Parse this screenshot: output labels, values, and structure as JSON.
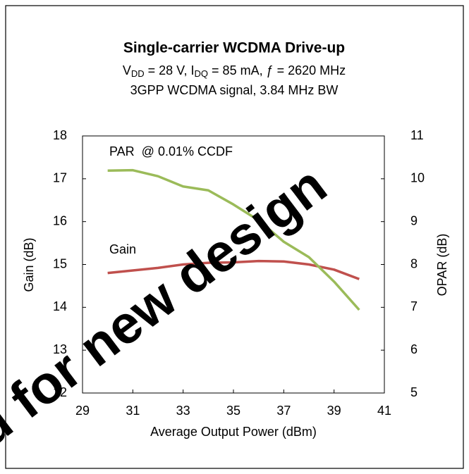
{
  "chart_data": {
    "type": "line",
    "title": "Single-carrier WCDMA Drive-up",
    "subtitle_parts": [
      "V",
      "DD",
      " = 28 V, I",
      "DQ",
      " = 85 mA, ƒ = 2620 MHz"
    ],
    "subtitle2": "3GPP WCDMA signal, 3.84 MHz BW",
    "watermark": "d for new design",
    "x_label": "Average Output Power (dBm)",
    "y_label": "Gain (dB)",
    "y2_label": "OPAR (dB)",
    "x": [
      30,
      31,
      32,
      33,
      34,
      35,
      36,
      37,
      38,
      39,
      40
    ],
    "xlim": [
      29,
      41
    ],
    "xticks": [
      29,
      31,
      33,
      35,
      37,
      39,
      41
    ],
    "ylim": [
      12,
      18
    ],
    "yticks": [
      12,
      13,
      14,
      15,
      16,
      17,
      18
    ],
    "y2lim": [
      5,
      11
    ],
    "y2ticks": [
      5,
      6,
      7,
      8,
      9,
      10,
      11
    ],
    "grid": false,
    "series": [
      {
        "name": "Gain",
        "color": "#c0504d",
        "values": [
          14.8,
          14.86,
          14.92,
          15.0,
          15.04,
          15.05,
          15.08,
          15.07,
          15.0,
          14.88,
          14.66
        ]
      },
      {
        "name": "PAR  @ 0.01% CCDF",
        "color": "#9bbb59",
        "axis": "y2",
        "values": [
          10.19,
          10.2,
          10.06,
          9.82,
          9.73,
          9.4,
          9.03,
          8.53,
          8.17,
          7.6,
          6.94
        ]
      }
    ]
  }
}
